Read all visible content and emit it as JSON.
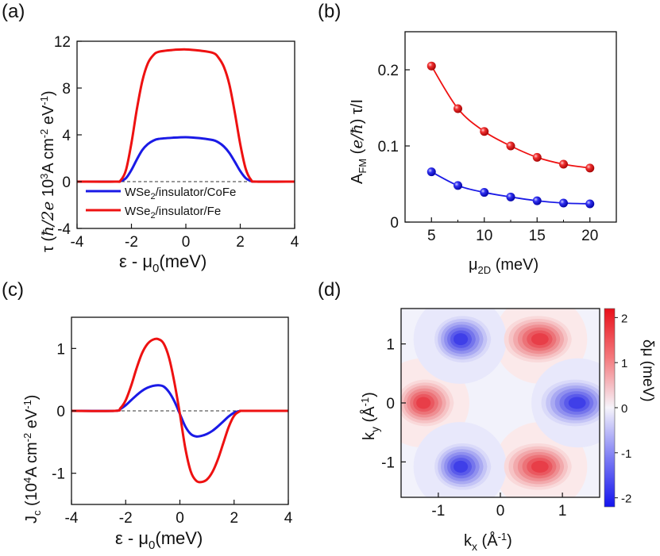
{
  "panel_labels": [
    "(a)",
    "(b)",
    "(c)",
    "(d)"
  ],
  "colors": {
    "red": "#ee1111",
    "blue": "#1a1ae6",
    "axis": "#111111"
  },
  "chart_data": [
    {
      "id": "a",
      "type": "line",
      "xlabel": "ε - μ0(meV)",
      "ylabel": "τ (ħ/2e  10³A cm⁻² eV⁻¹)",
      "xlim": [
        -4,
        4
      ],
      "ylim": [
        -4,
        12
      ],
      "xticks": [
        "-4",
        "-2",
        "0",
        "2",
        "4"
      ],
      "yticks": [
        "-4",
        "0",
        "4",
        "8",
        "12"
      ],
      "legend": {
        "position": "lower-left",
        "entries": [
          "WSe2/insulator/CoFe",
          "WSe2/insulator/Fe"
        ]
      },
      "reference_line": 0,
      "series": [
        {
          "name": "WSe2/insulator/CoFe",
          "color": "#1a1ae6",
          "x": [
            -4,
            -2.6,
            -2.4,
            -2.2,
            -2.0,
            -1.8,
            -1.6,
            -1.4,
            -1.2,
            -1.0,
            -0.5,
            0,
            0.5,
            1.0,
            1.2,
            1.4,
            1.6,
            1.8,
            2.0,
            2.2,
            2.4,
            2.6,
            4
          ],
          "y": [
            0,
            0,
            0.05,
            0.3,
            1.0,
            1.9,
            2.7,
            3.2,
            3.5,
            3.65,
            3.75,
            3.8,
            3.72,
            3.55,
            3.35,
            3.0,
            2.45,
            1.7,
            0.9,
            0.3,
            0.05,
            0,
            0
          ]
        },
        {
          "name": "WSe2/insulator/Fe",
          "color": "#ee1111",
          "x": [
            -4,
            -2.6,
            -2.4,
            -2.2,
            -2.0,
            -1.8,
            -1.6,
            -1.4,
            -1.2,
            -1.0,
            -0.5,
            0,
            0.5,
            1.0,
            1.2,
            1.4,
            1.6,
            1.8,
            2.0,
            2.2,
            2.4,
            2.6,
            4
          ],
          "y": [
            0,
            0,
            0.1,
            1.0,
            3.3,
            6.2,
            8.6,
            10.1,
            10.8,
            11.1,
            11.25,
            11.3,
            11.2,
            11.0,
            10.6,
            9.8,
            8.3,
            5.9,
            3.2,
            1.1,
            0.15,
            0,
            0
          ]
        }
      ]
    },
    {
      "id": "b",
      "type": "line",
      "xlabel": "μ2D (meV)",
      "ylabel": "AFM (e/ħ) τ/I",
      "xlim": [
        2.5,
        22.5
      ],
      "ylim": [
        0,
        0.25
      ],
      "xticks": [
        "5",
        "10",
        "15",
        "20"
      ],
      "yticks": [
        "0",
        "0.1",
        "0.2"
      ],
      "series": [
        {
          "color": "#ee1111",
          "x": [
            5,
            7.5,
            10,
            12.5,
            15,
            17.5,
            20
          ],
          "y": [
            0.205,
            0.149,
            0.119,
            0.1,
            0.085,
            0.076,
            0.071
          ]
        },
        {
          "color": "#1a1ae6",
          "x": [
            5,
            7.5,
            10,
            12.5,
            15,
            17.5,
            20
          ],
          "y": [
            0.066,
            0.048,
            0.039,
            0.033,
            0.028,
            0.025,
            0.024
          ]
        }
      ]
    },
    {
      "id": "c",
      "type": "line",
      "xlabel": "ε - μ0(meV)",
      "ylabel": "Jc (10⁴A cm⁻² eV⁻¹)",
      "xlim": [
        -4,
        4
      ],
      "ylim": [
        -1.5,
        1.5
      ],
      "xticks": [
        "-4",
        "-2",
        "0",
        "2",
        "4"
      ],
      "yticks": [
        "-1",
        "0",
        "1"
      ],
      "reference_line": 0,
      "series": [
        {
          "color": "#1a1ae6",
          "x": [
            -4,
            -2.4,
            -2.2,
            -2.0,
            -1.8,
            -1.6,
            -1.4,
            -1.2,
            -1.0,
            -0.8,
            -0.6,
            -0.4,
            -0.2,
            0,
            0.2,
            0.4,
            0.6,
            0.8,
            1.0,
            1.2,
            1.4,
            1.6,
            1.8,
            2.0,
            2.2,
            2.4,
            4
          ],
          "y": [
            0,
            0,
            0.03,
            0.09,
            0.17,
            0.25,
            0.32,
            0.37,
            0.4,
            0.41,
            0.39,
            0.3,
            0.15,
            -0.05,
            -0.25,
            -0.37,
            -0.41,
            -0.4,
            -0.37,
            -0.32,
            -0.25,
            -0.17,
            -0.09,
            -0.03,
            -0.005,
            0,
            0
          ]
        },
        {
          "color": "#ee1111",
          "x": [
            -4,
            -2.4,
            -2.2,
            -2.0,
            -1.8,
            -1.6,
            -1.4,
            -1.2,
            -1.0,
            -0.8,
            -0.6,
            -0.4,
            -0.2,
            0,
            0.2,
            0.4,
            0.6,
            0.8,
            1.0,
            1.2,
            1.4,
            1.6,
            1.8,
            2.0,
            2.2,
            2.4,
            4
          ],
          "y": [
            0,
            0,
            0.04,
            0.17,
            0.4,
            0.68,
            0.92,
            1.07,
            1.14,
            1.15,
            1.08,
            0.85,
            0.45,
            -0.05,
            -0.6,
            -0.97,
            -1.12,
            -1.14,
            -1.1,
            -0.98,
            -0.78,
            -0.52,
            -0.26,
            -0.08,
            -0.01,
            0,
            0
          ]
        }
      ]
    },
    {
      "id": "d",
      "type": "heatmap",
      "xlabel": "kx (Å⁻¹)",
      "ylabel": "ky (Å⁻¹)",
      "colorbar_label": "δμ (meV)",
      "xlim": [
        -1.6,
        1.6
      ],
      "ylim": [
        -1.6,
        1.6
      ],
      "xticks": [
        "-1",
        "0",
        "1"
      ],
      "yticks": [
        "-1",
        "0",
        "1"
      ],
      "colorbar_range": [
        -2.2,
        2.2
      ],
      "colorbar_ticks": [
        "2",
        "1",
        "0",
        "-1",
        "-2"
      ],
      "extrema": [
        {
          "kx": 0.65,
          "ky": 1.08,
          "value": 1.9
        },
        {
          "kx": -1.25,
          "ky": 0,
          "value": 1.9
        },
        {
          "kx": 0.65,
          "ky": -1.08,
          "value": 1.9
        },
        {
          "kx": -0.65,
          "ky": 1.08,
          "value": -1.9
        },
        {
          "kx": 1.25,
          "ky": 0,
          "value": -1.9
        },
        {
          "kx": -0.65,
          "ky": -1.08,
          "value": -1.9
        }
      ]
    }
  ]
}
